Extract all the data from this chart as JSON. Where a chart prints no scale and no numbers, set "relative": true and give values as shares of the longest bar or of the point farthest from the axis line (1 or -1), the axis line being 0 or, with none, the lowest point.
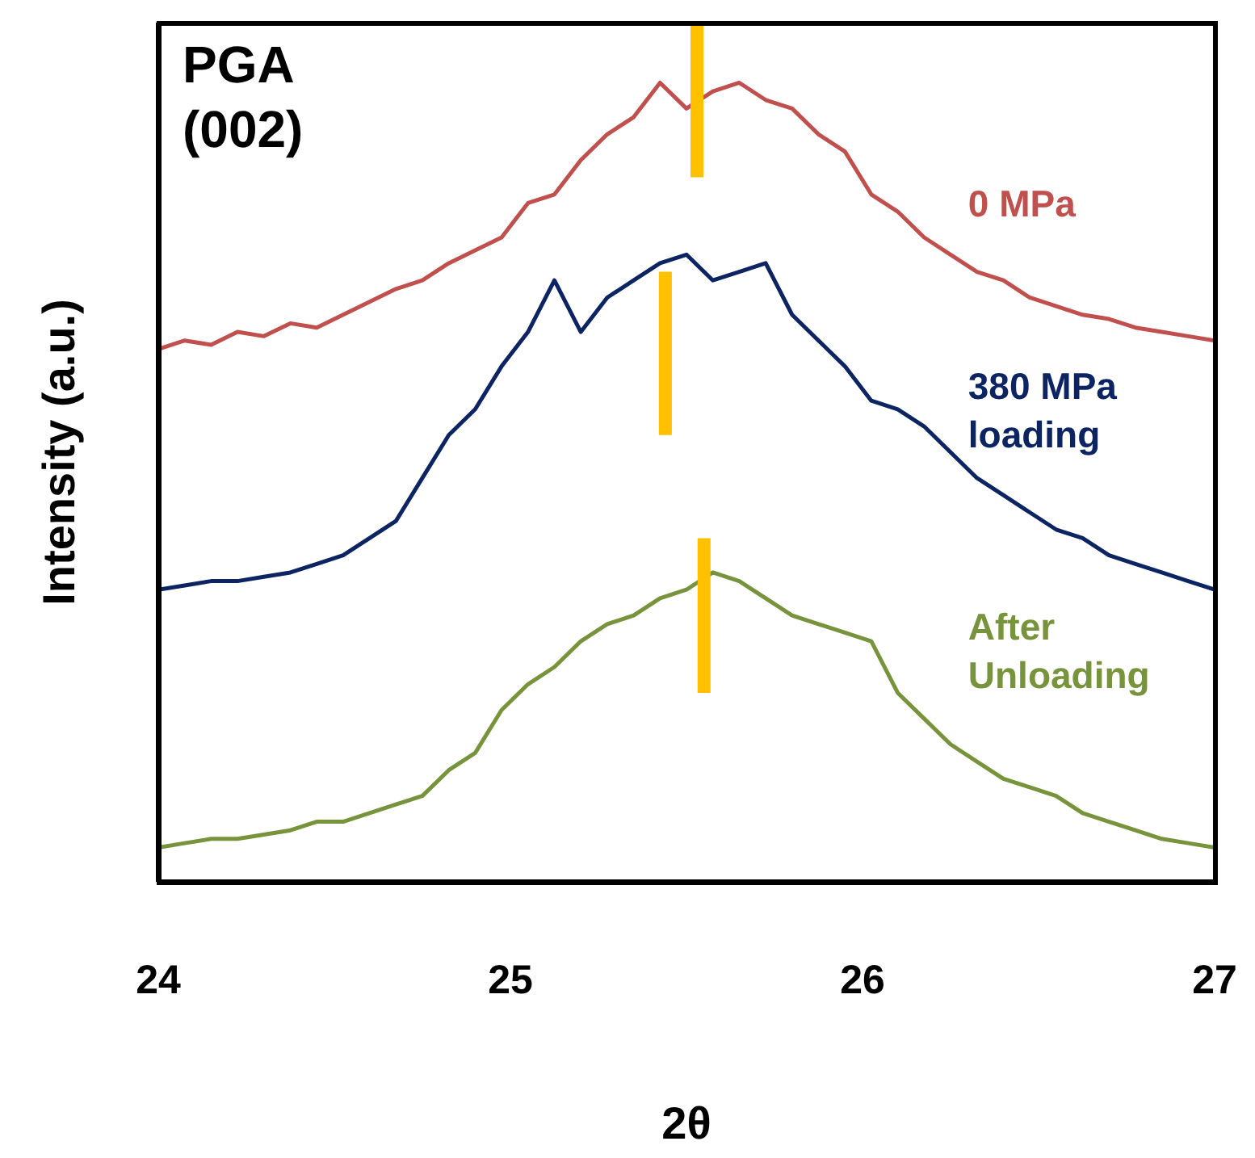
{
  "chart_data": {
    "type": "line",
    "title": "PGA (002)",
    "xlabel": "2θ",
    "ylabel": "Intensity (a.u.)",
    "relative": true,
    "xlim": [
      24,
      27
    ],
    "xticks": [
      24,
      25,
      26,
      27
    ],
    "grid": false,
    "x": [
      24,
      24.075,
      24.15,
      24.225,
      24.3,
      24.375,
      24.45,
      24.525,
      24.6,
      24.675,
      24.75,
      24.825,
      24.9,
      24.975,
      25.05,
      25.125,
      25.2,
      25.275,
      25.35,
      25.425,
      25.5,
      25.575,
      25.65,
      25.725,
      25.8,
      25.875,
      25.95,
      26.025,
      26.1,
      26.175,
      26.25,
      26.325,
      26.4,
      26.475,
      26.55,
      26.625,
      26.7,
      26.775,
      26.85,
      26.925,
      27
    ],
    "series": [
      {
        "name": "0 MPa",
        "color": "#c0504d",
        "values": [
          0.62,
          0.63,
          0.625,
          0.64,
          0.635,
          0.65,
          0.645,
          0.66,
          0.675,
          0.69,
          0.7,
          0.72,
          0.735,
          0.75,
          0.79,
          0.8,
          0.84,
          0.87,
          0.89,
          0.93,
          0.9,
          0.92,
          0.93,
          0.91,
          0.9,
          0.87,
          0.85,
          0.8,
          0.78,
          0.75,
          0.73,
          0.71,
          0.7,
          0.68,
          0.67,
          0.66,
          0.655,
          0.645,
          0.64,
          0.635,
          0.63
        ]
      },
      {
        "name": "380 MPa loading",
        "color": "#0d2463",
        "values": [
          0.34,
          0.345,
          0.35,
          0.35,
          0.355,
          0.36,
          0.37,
          0.38,
          0.4,
          0.42,
          0.47,
          0.52,
          0.55,
          0.6,
          0.64,
          0.7,
          0.64,
          0.68,
          0.7,
          0.72,
          0.73,
          0.7,
          0.71,
          0.72,
          0.66,
          0.63,
          0.6,
          0.56,
          0.55,
          0.53,
          0.5,
          0.47,
          0.45,
          0.43,
          0.41,
          0.4,
          0.38,
          0.37,
          0.36,
          0.35,
          0.34
        ]
      },
      {
        "name": "After Unloading",
        "color": "#77933c",
        "values": [
          0.04,
          0.045,
          0.05,
          0.05,
          0.055,
          0.06,
          0.07,
          0.07,
          0.08,
          0.09,
          0.1,
          0.13,
          0.15,
          0.2,
          0.23,
          0.25,
          0.28,
          0.3,
          0.31,
          0.33,
          0.34,
          0.36,
          0.35,
          0.33,
          0.31,
          0.3,
          0.29,
          0.28,
          0.22,
          0.19,
          0.16,
          0.14,
          0.12,
          0.11,
          0.1,
          0.08,
          0.07,
          0.06,
          0.05,
          0.045,
          0.04
        ]
      },
      {
        "color": "#ffc000",
        "x": [
          25.53,
          25.53
        ],
        "values": [
          0.82,
          1.0
        ]
      },
      {
        "color": "#ffc000",
        "x": [
          25.44,
          25.44
        ],
        "values": [
          0.52,
          0.71
        ]
      },
      {
        "color": "#ffc000",
        "x": [
          25.55,
          25.55
        ],
        "values": [
          0.22,
          0.4
        ]
      }
    ]
  }
}
